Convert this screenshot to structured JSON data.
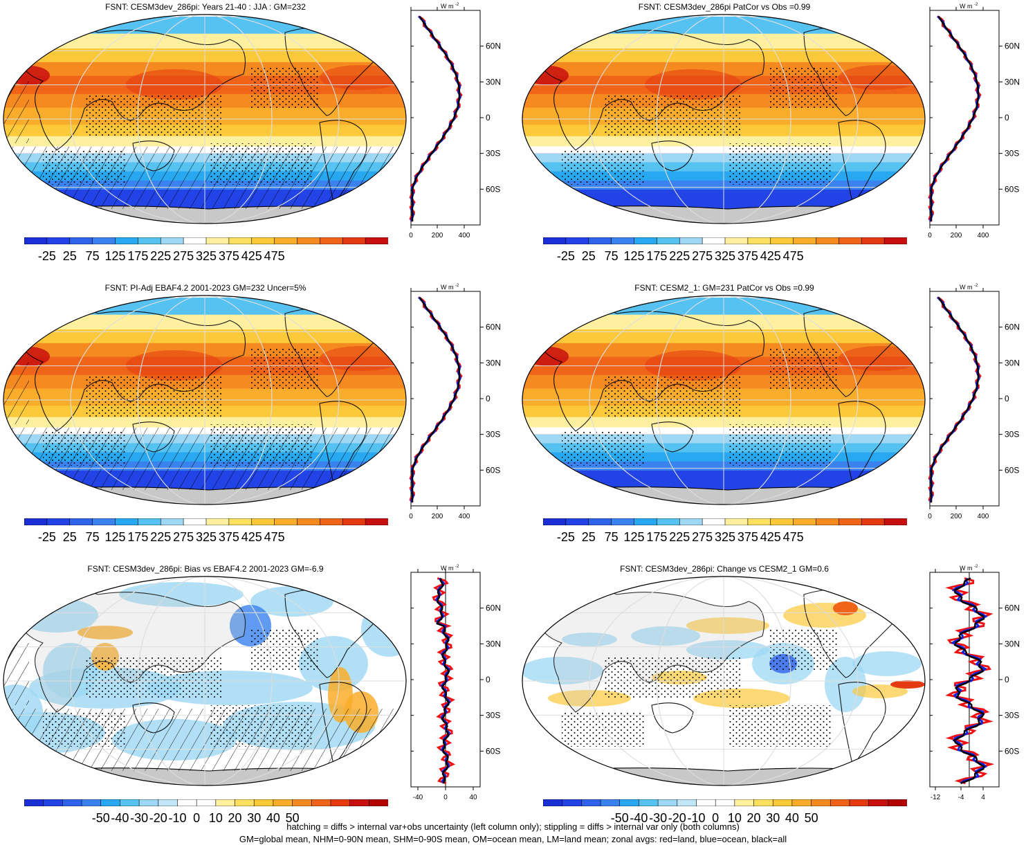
{
  "panels": [
    {
      "title": "FSNT: CESM3dev_286pi: Years 21-40 : JJA : GM=232",
      "kind": "abs",
      "hatch": true,
      "zonal_ticks": [
        "0",
        "200",
        "400"
      ],
      "colorbar": [
        "-25",
        "25",
        "75",
        "125",
        "175",
        "225",
        "275",
        "325",
        "375",
        "425",
        "475"
      ]
    },
    {
      "title": "FSNT: CESM3dev_286pi PatCor vs Obs =0.99",
      "kind": "abs",
      "hatch": false,
      "zonal_ticks": [
        "0",
        "200",
        "400"
      ],
      "colorbar": [
        "-25",
        "25",
        "75",
        "125",
        "175",
        "225",
        "275",
        "325",
        "375",
        "425",
        "475"
      ]
    },
    {
      "title": "FSNT: PI-Adj EBAF4.2 2001-2023 GM=232 Uncer=5%",
      "kind": "abs",
      "hatch": true,
      "zonal_ticks": [
        "0",
        "200",
        "400"
      ],
      "colorbar": [
        "-25",
        "25",
        "75",
        "125",
        "175",
        "225",
        "275",
        "325",
        "375",
        "425",
        "475"
      ]
    },
    {
      "title": "FSNT: CESM2_1: GM=231 PatCor vs Obs =0.99",
      "kind": "abs",
      "hatch": false,
      "zonal_ticks": [
        "0",
        "200",
        "400"
      ],
      "colorbar": [
        "-25",
        "25",
        "75",
        "125",
        "175",
        "225",
        "275",
        "325",
        "375",
        "425",
        "475"
      ]
    },
    {
      "title": "FSNT: CESM3dev_286pi: Bias vs EBAF4.2 2001-2023 GM=-6.9",
      "kind": "diff",
      "hatch": true,
      "zonal_ticks": [
        "-40",
        "0",
        "40"
      ],
      "colorbar": [
        "-50",
        "-40",
        "-30",
        "-20",
        "-10",
        "0",
        "10",
        "20",
        "30",
        "40",
        "50"
      ]
    },
    {
      "title": "FSNT: CESM3dev_286pi: Change vs CESM2_1 GM=0.6",
      "kind": "diff2",
      "hatch": false,
      "zonal_ticks": [
        "-12",
        "-4",
        "4"
      ],
      "colorbar": [
        "-50",
        "-40",
        "-30",
        "-20",
        "-10",
        "0",
        "10",
        "20",
        "30",
        "40",
        "50"
      ]
    }
  ],
  "zonal_units": "W m",
  "zonal_units_sup": "-2",
  "lat_labels": [
    "60N",
    "30N",
    "0",
    "30S",
    "60S"
  ],
  "footer": {
    "line1": "hatching = diffs > internal var+obs uncertainty (left column only); stippling = diffs > internal var only (both columns)",
    "line2": "GM=global mean, NHM=0-90N mean, SHM=0-90S mean, OM=ocean mean, LM=land mean; zonal avgs: red=land, blue=ocean, black=all"
  },
  "colors": {
    "abs": [
      "#1a2fd6",
      "#2244e6",
      "#2f63ea",
      "#3a82ee",
      "#27a8f0",
      "#55c2f2",
      "#9ed8f4",
      "#ffffff",
      "#fff0a0",
      "#fde060",
      "#fbc93a",
      "#f9ad2a",
      "#f58a20",
      "#ef6418",
      "#e43a12",
      "#c80f0f"
    ],
    "diff": [
      "#1a2fd6",
      "#2244e6",
      "#2f63ea",
      "#3a82ee",
      "#27a8f0",
      "#55c2f2",
      "#9ed8f4",
      "#bfe5f7",
      "#ffffff",
      "#ffffff",
      "#fff0a0",
      "#fde060",
      "#fbc93a",
      "#f9ad2a",
      "#f58a20",
      "#ef6418",
      "#e43a12",
      "#c80f0f",
      "#b00000"
    ],
    "land_gray": "#c8c8c8",
    "zonal_land": "#ee1111",
    "zonal_ocean": "#1122dd",
    "zonal_all": "#000000"
  }
}
